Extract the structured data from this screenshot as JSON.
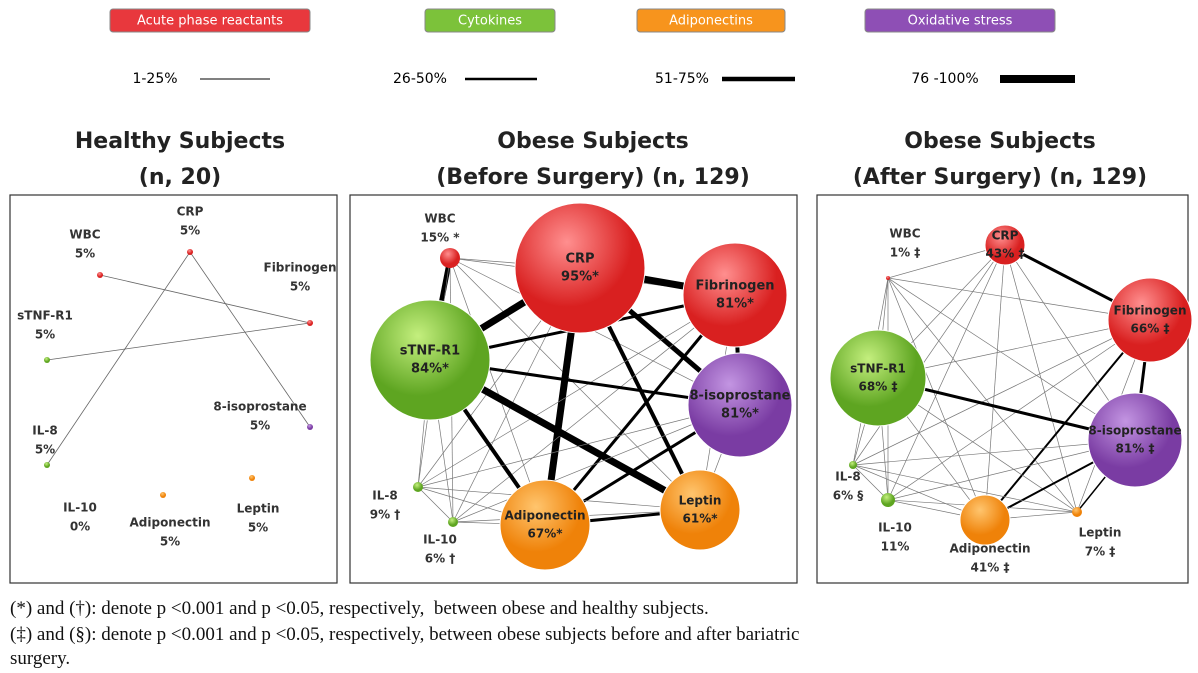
{
  "legend": {
    "categories": [
      {
        "name": "Acute phase reactants",
        "color": "#e8383d"
      },
      {
        "name": "Cytokines",
        "color": "#7cc23a"
      },
      {
        "name": "Adiponectins",
        "color": "#f7941d"
      },
      {
        "name": "Oxidative stress",
        "color": "#8e4fb5"
      }
    ],
    "line_widths": [
      "1-25%",
      "26-50%",
      "51-75%",
      "76 -100%"
    ]
  },
  "panels": [
    {
      "title": [
        "Healthy Subjects",
        "(n, 20)"
      ],
      "nodes": [
        {
          "label": "WBC",
          "value": "5%"
        },
        {
          "label": "CRP",
          "value": "5%"
        },
        {
          "label": "Fibrinogen",
          "value": "5%"
        },
        {
          "label": "sTNF-R1",
          "value": "5%"
        },
        {
          "label": "8-isoprostane",
          "value": "5%"
        },
        {
          "label": "IL-8",
          "value": "5%"
        },
        {
          "label": "IL-10",
          "value": "0%"
        },
        {
          "label": "Adiponectin",
          "value": "5%"
        },
        {
          "label": "Leptin",
          "value": "5%"
        }
      ]
    },
    {
      "title": [
        "Obese Subjects",
        "(Before Surgery) (n, 129)"
      ],
      "nodes": [
        {
          "label": "WBC",
          "value": "15% *"
        },
        {
          "label": "CRP",
          "value": "95%*"
        },
        {
          "label": "Fibrinogen",
          "value": "81%*"
        },
        {
          "label": "sTNF-R1",
          "value": "84%*"
        },
        {
          "label": "8-isoprostane",
          "value": "81%*"
        },
        {
          "label": "IL-8",
          "value": "9% †"
        },
        {
          "label": "IL-10",
          "value": "6% †"
        },
        {
          "label": "Adiponectin",
          "value": "67%*"
        },
        {
          "label": "Leptin",
          "value": "61%*"
        }
      ]
    },
    {
      "title": [
        "Obese Subjects",
        "(After Surgery) (n, 129)"
      ],
      "nodes": [
        {
          "label": "WBC",
          "value": "1% ‡"
        },
        {
          "label": "CRP",
          "value": "43% ‡"
        },
        {
          "label": "Fibrinogen",
          "value": "66% ‡"
        },
        {
          "label": "sTNF-R1",
          "value": "68% ‡"
        },
        {
          "label": "8-isoprostane",
          "value": "81% ‡"
        },
        {
          "label": "IL-8",
          "value": "6% §"
        },
        {
          "label": "IL-10",
          "value": "11%"
        },
        {
          "label": "Adiponectin",
          "value": "41% ‡"
        },
        {
          "label": "Leptin",
          "value": "7% ‡"
        }
      ]
    }
  ],
  "footnotes": [
    "(*) and (†): denote p <0.001 and p <0.05, respectively,  between obese and healthy subjects.",
    "(‡) and (§): denote p <0.001 and p <0.05, respectively, between obese subjects before and after bariatric",
    "surgery."
  ]
}
